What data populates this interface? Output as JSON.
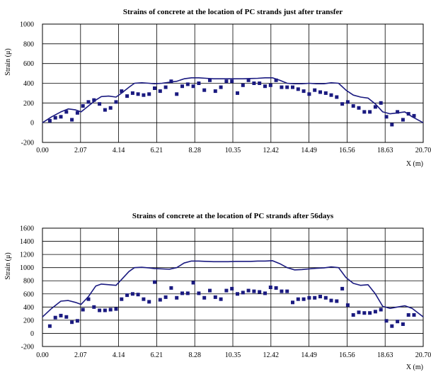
{
  "chart_data": [
    {
      "type": "scatter",
      "title": "Strains of concrete at the location of PC strands just after transfer",
      "ylabel": "Strain (μ)",
      "xlabel": "X (m)",
      "xlim": [
        0,
        20.7
      ],
      "ylim": [
        -200,
        1000
      ],
      "x_ticks": [
        "0.00",
        "2.07",
        "4.14",
        "6.21",
        "8.28",
        "10.35",
        "12.42",
        "14.49",
        "16.56",
        "18.63",
        "20.70"
      ],
      "y_ticks": [
        "-200",
        "0",
        "200",
        "400",
        "600",
        "800",
        "1000"
      ],
      "grid": true,
      "line_color": "#1a1a80",
      "marker_color": "#1a1a80",
      "series": [
        {
          "kind": "line",
          "x": [
            0.0,
            0.5,
            1.0,
            1.4,
            1.8,
            2.1,
            2.5,
            2.9,
            3.2,
            3.6,
            4.0,
            4.3,
            4.7,
            5.0,
            5.4,
            5.8,
            6.1,
            6.5,
            6.9,
            7.3,
            7.7,
            8.1,
            8.5,
            8.9,
            9.3,
            9.7,
            10.1,
            10.5,
            10.9,
            11.3,
            11.7,
            12.1,
            12.5,
            12.9,
            13.3,
            13.7,
            14.1,
            14.5,
            14.9,
            15.3,
            15.7,
            16.1,
            16.5,
            16.9,
            17.3,
            17.7,
            18.1,
            18.5,
            18.9,
            19.3,
            19.7,
            20.1,
            20.7
          ],
          "y": [
            0,
            60,
            110,
            140,
            130,
            110,
            170,
            230,
            265,
            270,
            260,
            300,
            360,
            400,
            405,
            400,
            395,
            400,
            410,
            420,
            445,
            455,
            455,
            450,
            445,
            445,
            445,
            445,
            445,
            448,
            450,
            455,
            455,
            430,
            400,
            395,
            395,
            400,
            395,
            395,
            405,
            400,
            330,
            280,
            260,
            250,
            190,
            110,
            90,
            100,
            110,
            60,
            0
          ]
        },
        {
          "kind": "scatter",
          "x": [
            0.4,
            0.7,
            1.0,
            1.3,
            1.6,
            1.9,
            2.2,
            2.5,
            2.8,
            3.1,
            3.4,
            3.7,
            4.0,
            4.3,
            4.6,
            4.9,
            5.2,
            5.5,
            5.8,
            6.1,
            6.4,
            6.7,
            7.0,
            7.3,
            7.6,
            7.9,
            8.2,
            8.5,
            8.8,
            9.1,
            9.4,
            9.7,
            10.0,
            10.3,
            10.6,
            10.9,
            11.2,
            11.5,
            11.8,
            12.1,
            12.4,
            12.7,
            13.0,
            13.3,
            13.6,
            13.9,
            14.2,
            14.5,
            14.8,
            15.1,
            15.4,
            15.7,
            16.0,
            16.3,
            16.6,
            16.9,
            17.2,
            17.5,
            17.8,
            18.1,
            18.4,
            18.7,
            19.0,
            19.3,
            19.6,
            19.9,
            20.2
          ],
          "y": [
            20,
            50,
            60,
            110,
            30,
            100,
            170,
            210,
            230,
            190,
            130,
            150,
            210,
            320,
            270,
            300,
            290,
            280,
            290,
            350,
            320,
            360,
            420,
            290,
            370,
            390,
            370,
            400,
            330,
            430,
            320,
            360,
            420,
            420,
            300,
            380,
            430,
            400,
            400,
            370,
            380,
            430,
            360,
            360,
            360,
            340,
            320,
            290,
            330,
            310,
            300,
            280,
            260,
            190,
            210,
            170,
            150,
            110,
            110,
            160,
            200,
            60,
            -20,
            110,
            30,
            90,
            70
          ]
        }
      ]
    },
    {
      "type": "scatter",
      "title": "Strains of concrete at the location of PC strands after 56days",
      "ylabel": "Strain (μ)",
      "xlabel": "X (m)",
      "xlim": [
        0,
        20.7
      ],
      "ylim": [
        -200,
        1600
      ],
      "x_ticks": [
        "0.00",
        "2.07",
        "4.14",
        "6.21",
        "8.28",
        "10.35",
        "12.42",
        "14.49",
        "16.56",
        "18.63",
        "20.70"
      ],
      "y_ticks": [
        "-200",
        "0",
        "200",
        "400",
        "600",
        "800",
        "1000",
        "1200",
        "1400",
        "1600"
      ],
      "grid": true,
      "line_color": "#1a1a80",
      "marker_color": "#1a1a80",
      "series": [
        {
          "kind": "line",
          "x": [
            0.0,
            0.5,
            1.0,
            1.4,
            1.8,
            2.1,
            2.5,
            2.9,
            3.2,
            3.6,
            4.0,
            4.3,
            4.7,
            5.0,
            5.4,
            5.8,
            6.1,
            6.5,
            6.9,
            7.3,
            7.7,
            8.1,
            8.5,
            8.9,
            9.3,
            9.7,
            10.1,
            10.5,
            10.9,
            11.3,
            11.7,
            12.1,
            12.5,
            12.9,
            13.3,
            13.7,
            14.1,
            14.5,
            14.9,
            15.3,
            15.7,
            16.1,
            16.5,
            16.9,
            17.3,
            17.7,
            18.1,
            18.5,
            18.9,
            19.3,
            19.7,
            20.1,
            20.7
          ],
          "y": [
            250,
            380,
            490,
            500,
            470,
            440,
            560,
            720,
            750,
            740,
            730,
            820,
            940,
            1000,
            1005,
            995,
            985,
            980,
            975,
            1000,
            1070,
            1100,
            1100,
            1095,
            1090,
            1090,
            1090,
            1095,
            1095,
            1095,
            1100,
            1100,
            1105,
            1060,
            1000,
            965,
            970,
            980,
            990,
            995,
            1010,
            1000,
            850,
            760,
            730,
            740,
            600,
            410,
            380,
            400,
            420,
            380,
            250
          ]
        },
        {
          "kind": "scatter",
          "x": [
            0.4,
            0.7,
            1.0,
            1.3,
            1.6,
            1.9,
            2.2,
            2.5,
            2.8,
            3.1,
            3.4,
            3.7,
            4.0,
            4.3,
            4.6,
            4.9,
            5.2,
            5.5,
            5.8,
            6.1,
            6.4,
            6.7,
            7.0,
            7.3,
            7.6,
            7.9,
            8.2,
            8.5,
            8.8,
            9.1,
            9.4,
            9.7,
            10.0,
            10.3,
            10.6,
            10.9,
            11.2,
            11.5,
            11.8,
            12.1,
            12.4,
            12.7,
            13.0,
            13.3,
            13.6,
            13.9,
            14.2,
            14.5,
            14.8,
            15.1,
            15.4,
            15.7,
            16.0,
            16.3,
            16.6,
            16.9,
            17.2,
            17.5,
            17.8,
            18.1,
            18.4,
            18.7,
            19.0,
            19.3,
            19.6,
            19.9,
            20.2
          ],
          "y": [
            110,
            240,
            270,
            250,
            170,
            190,
            360,
            520,
            400,
            350,
            350,
            360,
            370,
            520,
            580,
            600,
            590,
            520,
            480,
            780,
            510,
            550,
            690,
            540,
            610,
            610,
            770,
            610,
            540,
            650,
            550,
            520,
            650,
            680,
            600,
            620,
            650,
            640,
            630,
            610,
            700,
            690,
            640,
            640,
            470,
            520,
            520,
            540,
            540,
            560,
            540,
            500,
            490,
            680,
            430,
            280,
            320,
            310,
            310,
            330,
            360,
            190,
            110,
            180,
            140,
            280,
            280
          ]
        }
      ]
    }
  ]
}
